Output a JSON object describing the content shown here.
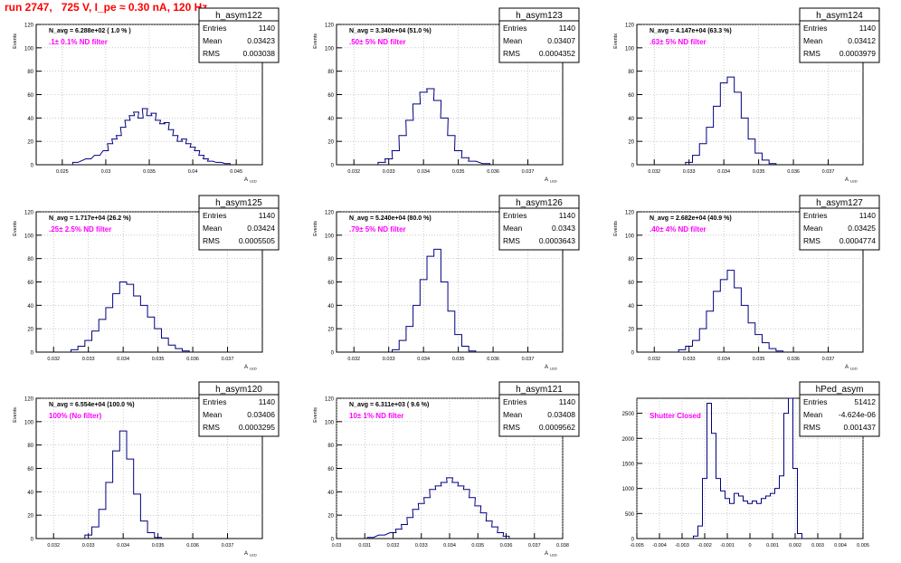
{
  "page_title": "run 2747,   725 V, I_pe ≈ 0.30 nA, 120 Hz",
  "chart_data": [
    {
      "type": "histogram",
      "name": "h_asym122",
      "annotation": "N_avg = 6.288e+02 ( 1.0 % )",
      "filter_label": ".1± 0.1% ND filter",
      "stats": {
        "entries": "1140",
        "mean": "0.03423",
        "rms": "0.003038"
      },
      "ylabel": "Events",
      "xlabel": "A_{LED}",
      "xlim": [
        0.022,
        0.048
      ],
      "ylim": [
        0,
        120
      ],
      "xticks": [
        0.025,
        0.03,
        0.035,
        0.04,
        0.045
      ],
      "xticklabels": [
        "0.025",
        "0.03",
        "0.035",
        "0.04",
        "0.045"
      ],
      "yticks": [
        0,
        20,
        40,
        60,
        80,
        100,
        120
      ],
      "x": [
        0.0265,
        0.028,
        0.029,
        0.03,
        0.0305,
        0.031,
        0.0315,
        0.032,
        0.0325,
        0.033,
        0.0335,
        0.034,
        0.0345,
        0.035,
        0.0355,
        0.036,
        0.0365,
        0.037,
        0.0375,
        0.038,
        0.0385,
        0.039,
        0.0395,
        0.04,
        0.0405,
        0.041,
        0.0415,
        0.042,
        0.043,
        0.044
      ],
      "values": [
        2,
        5,
        8,
        12,
        18,
        22,
        25,
        32,
        38,
        42,
        45,
        40,
        48,
        42,
        44,
        38,
        35,
        36,
        30,
        25,
        20,
        22,
        18,
        15,
        12,
        8,
        5,
        3,
        2,
        1
      ]
    },
    {
      "type": "histogram",
      "name": "h_asym123",
      "annotation": "N_avg = 3.340e+04 (51.0 %)",
      "filter_label": ".50± 5% ND filter",
      "stats": {
        "entries": "1140",
        "mean": "0.03407",
        "rms": "0.0004352"
      },
      "ylabel": "Events",
      "xlabel": "A_{LED}",
      "xlim": [
        0.0315,
        0.038
      ],
      "ylim": [
        0,
        120
      ],
      "xticks": [
        0.032,
        0.033,
        0.034,
        0.035,
        0.036,
        0.037
      ],
      "xticklabels": [
        "0.032",
        "0.033",
        "0.034",
        "0.035",
        "0.036",
        "0.037"
      ],
      "yticks": [
        0,
        20,
        40,
        60,
        80,
        100,
        120
      ],
      "x": [
        0.0328,
        0.033,
        0.0332,
        0.0334,
        0.0336,
        0.0338,
        0.034,
        0.0342,
        0.0344,
        0.0346,
        0.0348,
        0.035,
        0.0352,
        0.0354,
        0.0358
      ],
      "values": [
        2,
        5,
        12,
        25,
        38,
        52,
        62,
        65,
        55,
        40,
        25,
        12,
        6,
        3,
        1
      ]
    },
    {
      "type": "histogram",
      "name": "h_asym124",
      "annotation": "N_avg = 4.147e+04 (63.3 %)",
      "filter_label": ".63± 5% ND filter",
      "stats": {
        "entries": "1140",
        "mean": "0.03412",
        "rms": "0.0003979"
      },
      "ylabel": "Events",
      "xlabel": "A_{LED}",
      "xlim": [
        0.0315,
        0.038
      ],
      "ylim": [
        0,
        120
      ],
      "xticks": [
        0.032,
        0.033,
        0.034,
        0.035,
        0.036,
        0.037
      ],
      "xticklabels": [
        "0.032",
        "0.033",
        "0.034",
        "0.035",
        "0.036",
        "0.037"
      ],
      "yticks": [
        0,
        20,
        40,
        60,
        80,
        100,
        120
      ],
      "x": [
        0.033,
        0.0332,
        0.0334,
        0.0336,
        0.0338,
        0.034,
        0.0342,
        0.0344,
        0.0346,
        0.0348,
        0.035,
        0.0352,
        0.0354
      ],
      "values": [
        2,
        8,
        18,
        32,
        50,
        70,
        75,
        62,
        40,
        22,
        10,
        4,
        1
      ]
    },
    {
      "type": "histogram",
      "name": "h_asym125",
      "annotation": "N_avg = 1.717e+04 (26.2 %)",
      "filter_label": ".25± 2.5% ND filter",
      "stats": {
        "entries": "1140",
        "mean": "0.03424",
        "rms": "0.0005505"
      },
      "ylabel": "Events",
      "xlabel": "A_{LED}",
      "xlim": [
        0.0315,
        0.038
      ],
      "ylim": [
        0,
        120
      ],
      "xticks": [
        0.032,
        0.033,
        0.034,
        0.035,
        0.036,
        0.037
      ],
      "xticklabels": [
        "0.032",
        "0.033",
        "0.034",
        "0.035",
        "0.036",
        "0.037"
      ],
      "yticks": [
        0,
        20,
        40,
        60,
        80,
        100,
        120
      ],
      "x": [
        0.0326,
        0.0328,
        0.033,
        0.0332,
        0.0334,
        0.0336,
        0.0338,
        0.034,
        0.0342,
        0.0344,
        0.0346,
        0.0348,
        0.035,
        0.0352,
        0.0354,
        0.0356,
        0.0358
      ],
      "values": [
        2,
        5,
        10,
        18,
        28,
        38,
        50,
        60,
        58,
        48,
        40,
        30,
        20,
        12,
        6,
        3,
        1
      ]
    },
    {
      "type": "histogram",
      "name": "h_asym126",
      "annotation": "N_avg = 5.240e+04 (80.0 %)",
      "filter_label": ".79± 5% ND filter",
      "stats": {
        "entries": "1140",
        "mean": "0.0343",
        "rms": "0.0003643"
      },
      "ylabel": "Events",
      "xlabel": "A_{LED}",
      "xlim": [
        0.0315,
        0.038
      ],
      "ylim": [
        0,
        120
      ],
      "xticks": [
        0.032,
        0.033,
        0.034,
        0.035,
        0.036,
        0.037
      ],
      "xticklabels": [
        "0.032",
        "0.033",
        "0.034",
        "0.035",
        "0.036",
        "0.037"
      ],
      "yticks": [
        0,
        20,
        40,
        60,
        80,
        100,
        120
      ],
      "x": [
        0.0332,
        0.0334,
        0.0336,
        0.0338,
        0.034,
        0.0342,
        0.0344,
        0.0346,
        0.0348,
        0.035,
        0.0352,
        0.0354
      ],
      "values": [
        2,
        10,
        22,
        40,
        62,
        82,
        88,
        60,
        35,
        15,
        5,
        1
      ]
    },
    {
      "type": "histogram",
      "name": "h_asym127",
      "annotation": "N_avg = 2.682e+04 (40.9 %)",
      "filter_label": ".40± 4% ND filter",
      "stats": {
        "entries": "1140",
        "mean": "0.03425",
        "rms": "0.0004774"
      },
      "ylabel": "Events",
      "xlabel": "A_{LED}",
      "xlim": [
        0.0315,
        0.038
      ],
      "ylim": [
        0,
        120
      ],
      "xticks": [
        0.032,
        0.033,
        0.034,
        0.035,
        0.036,
        0.037
      ],
      "xticklabels": [
        "0.032",
        "0.033",
        "0.034",
        "0.035",
        "0.036",
        "0.037"
      ],
      "yticks": [
        0,
        20,
        40,
        60,
        80,
        100,
        120
      ],
      "x": [
        0.0328,
        0.033,
        0.0332,
        0.0334,
        0.0336,
        0.0338,
        0.034,
        0.0342,
        0.0344,
        0.0346,
        0.0348,
        0.035,
        0.0352,
        0.0354,
        0.0356
      ],
      "values": [
        2,
        5,
        10,
        20,
        35,
        52,
        62,
        70,
        55,
        40,
        25,
        15,
        8,
        3,
        1
      ]
    },
    {
      "type": "histogram",
      "name": "h_asym120",
      "annotation": "N_avg = 6.554e+04 (100.0 %)",
      "filter_label": "100% (No filter)",
      "stats": {
        "entries": "1140",
        "mean": "0.03406",
        "rms": "0.0003295"
      },
      "ylabel": "Events",
      "xlabel": "A_{LED}",
      "xlim": [
        0.0315,
        0.038
      ],
      "ylim": [
        0,
        120
      ],
      "xticks": [
        0.032,
        0.033,
        0.034,
        0.035,
        0.036,
        0.037
      ],
      "xticklabels": [
        "0.032",
        "0.033",
        "0.034",
        "0.035",
        "0.036",
        "0.037"
      ],
      "yticks": [
        0,
        20,
        40,
        60,
        80,
        100,
        120
      ],
      "x": [
        0.033,
        0.0332,
        0.0334,
        0.0336,
        0.0338,
        0.034,
        0.0342,
        0.0344,
        0.0346,
        0.0348,
        0.035
      ],
      "values": [
        3,
        10,
        25,
        48,
        75,
        92,
        68,
        38,
        15,
        5,
        1
      ]
    },
    {
      "type": "histogram",
      "name": "h_asym121",
      "annotation": "N_avg = 6.311e+03 ( 9.6 %)",
      "filter_label": "10± 1% ND filter",
      "stats": {
        "entries": "1140",
        "mean": "0.03408",
        "rms": "0.0009562"
      },
      "ylabel": "Events",
      "xlabel": "A_{LED}",
      "xlim": [
        0.03,
        0.038
      ],
      "ylim": [
        0,
        120
      ],
      "xticks": [
        0.03,
        0.031,
        0.032,
        0.033,
        0.034,
        0.035,
        0.036,
        0.037,
        0.038
      ],
      "xticklabels": [
        "0.03",
        "0.031",
        "0.032",
        "0.033",
        "0.034",
        "0.035",
        "0.036",
        "0.037",
        "0.038"
      ],
      "yticks": [
        0,
        20,
        40,
        60,
        80,
        100,
        120
      ],
      "x": [
        0.0312,
        0.0316,
        0.032,
        0.0322,
        0.0324,
        0.0326,
        0.0328,
        0.033,
        0.0332,
        0.0334,
        0.0336,
        0.0338,
        0.034,
        0.0342,
        0.0344,
        0.0346,
        0.0348,
        0.035,
        0.0352,
        0.0354,
        0.0356,
        0.0358,
        0.036
      ],
      "values": [
        1,
        3,
        5,
        8,
        12,
        18,
        25,
        30,
        35,
        42,
        45,
        48,
        52,
        48,
        45,
        42,
        35,
        28,
        22,
        15,
        10,
        5,
        2
      ]
    },
    {
      "type": "histogram",
      "name": "hPed_asym",
      "annotation": "",
      "filter_label": "Shutter Closed",
      "stats": {
        "entries": "51412",
        "mean": "-4.624e-06",
        "rms": "0.001437"
      },
      "ylabel": "",
      "xlabel": "",
      "xlim": [
        -0.005,
        0.005
      ],
      "ylim": [
        0,
        2800
      ],
      "xticks": [
        -0.005,
        -0.004,
        -0.003,
        -0.002,
        -0.001,
        0,
        0.001,
        0.002,
        0.003,
        0.004,
        0.005
      ],
      "xticklabels": [
        "-0.005",
        "-0.004",
        "-0.003",
        "-0.002",
        "-0.001",
        "0",
        "0.001",
        "0.002",
        "0.003",
        "0.004",
        "0.005"
      ],
      "yticks": [
        0,
        500,
        1000,
        1500,
        2000,
        2500
      ],
      "x": [
        -0.0024,
        -0.0022,
        -0.002,
        -0.0018,
        -0.0016,
        -0.0014,
        -0.0012,
        -0.001,
        -0.0008,
        -0.0006,
        -0.0004,
        -0.0002,
        0,
        0.0002,
        0.0004,
        0.0006,
        0.0008,
        0.001,
        0.0012,
        0.0014,
        0.0016,
        0.0018,
        0.002,
        0.0022
      ],
      "values": [
        50,
        250,
        1200,
        2700,
        2100,
        1200,
        950,
        800,
        700,
        900,
        850,
        750,
        700,
        750,
        700,
        800,
        850,
        900,
        1000,
        1250,
        2500,
        2800,
        1400,
        100
      ]
    }
  ]
}
